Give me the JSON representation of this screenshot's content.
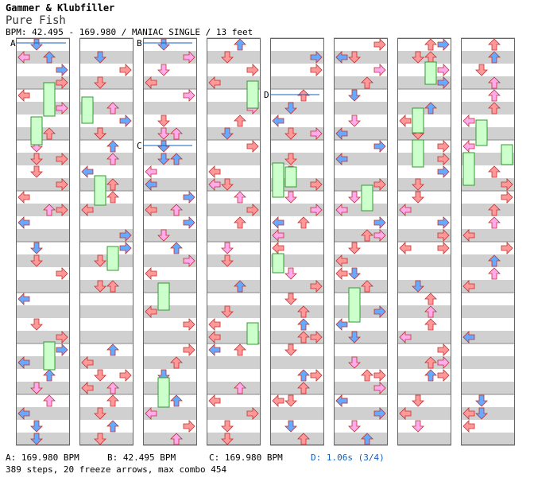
{
  "song": {
    "artist": "Gammer & Klubfiller",
    "title": "Pure Fish",
    "info": "BPM: 42.495 - 169.980 / MANIAC SINGLE / 13 feet"
  },
  "markers": [
    {
      "label": "A"
    },
    {
      "label": "B"
    },
    {
      "label": "C"
    },
    {
      "label": "D"
    }
  ],
  "legend": {
    "a": "A: 169.980 BPM",
    "b": "B: 42.495 BPM",
    "c": "C: 169.980 BPM",
    "d": "D: 1.06s (3/4)"
  },
  "summary": "389 steps, 20 freeze arrows, max combo 454",
  "colors": {
    "quarter": "#ff9999",
    "eighth": "#66aaff",
    "sixteenth": "#ffaaee",
    "freeze": "#ccffcc",
    "stripe": "#d0d0d0"
  }
}
